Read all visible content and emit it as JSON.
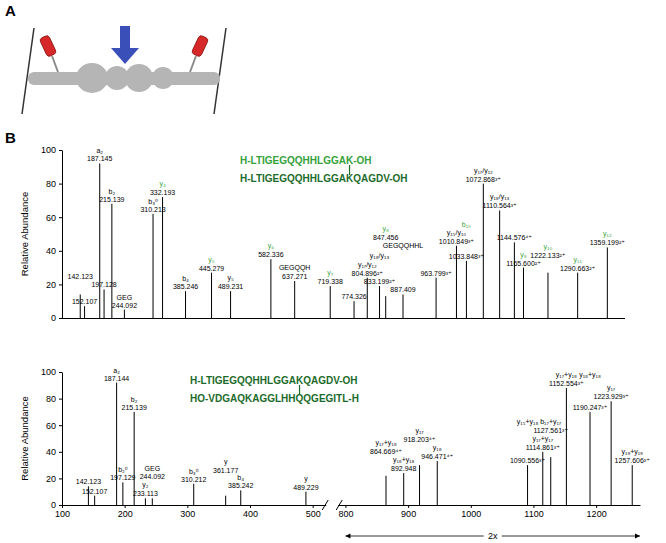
{
  "panel_labels": [
    "A",
    "B"
  ],
  "chart_data": [
    {
      "type": "bar",
      "color": "#000000",
      "y_label": "Relative Abundance",
      "xlim": [
        100,
        1400
      ],
      "ylim": [
        0,
        100
      ],
      "yticks": [
        0,
        20,
        40,
        60,
        80,
        100
      ],
      "tick_labels": "y",
      "x": [
        142.123,
        152.107,
        187.145,
        197.128,
        215.139,
        244.092,
        310.213,
        332.193,
        385.246,
        445.279,
        489.231,
        582.336,
        637.271,
        719.338,
        774.326,
        804.896,
        833.199,
        847.456,
        887.409,
        963.799,
        1010.849,
        1033.848,
        1072.868,
        1110.564,
        1144.576,
        1165.6,
        1222.133,
        1290.663,
        1359.199
      ],
      "values": [
        14,
        7,
        92,
        17,
        68,
        5,
        62,
        72,
        16,
        27,
        16,
        35,
        22,
        19,
        10,
        24,
        19,
        13,
        14,
        24,
        43,
        34,
        80,
        64,
        45,
        30,
        27,
        27,
        42
      ],
      "sequences": [
        {
          "text": "H-LTIGEGQQHHLGGAK-OH",
          "color": "#35a13a"
        },
        {
          "text": "H-LTIGEGQQHHLGGAKQAGDV-OH",
          "color": "#1d6b2a"
        }
      ],
      "annotations": [
        {
          "x": 142.123,
          "text": "142.123",
          "color": "#000000"
        },
        {
          "x": 152.107,
          "text": "152.107",
          "color": "#000000"
        },
        {
          "x": 187.145,
          "text": "187.145",
          "color": "#000000"
        },
        {
          "x": 187.145,
          "text": "a₂",
          "color": "#000000"
        },
        {
          "x": 197.128,
          "text": "197.128",
          "color": "#000000"
        },
        {
          "x": 215.139,
          "text": "215.139",
          "color": "#000000"
        },
        {
          "x": 215.139,
          "text": "b₂",
          "color": "#000000"
        },
        {
          "x": 244.092,
          "text": "244.092",
          "color": "#000000"
        },
        {
          "x": 244.092,
          "text": "GEG",
          "color": "#000000"
        },
        {
          "x": 310.213,
          "text": "310.213",
          "color": "#000000"
        },
        {
          "x": 310.213,
          "text": "b₃⁰",
          "color": "#000000"
        },
        {
          "x": 332.193,
          "text": "332.193",
          "color": "#000000"
        },
        {
          "x": 332.193,
          "text": "y₄",
          "color": "#35a13a"
        },
        {
          "x": 385.246,
          "text": "385.246",
          "color": "#000000"
        },
        {
          "x": 385.246,
          "text": "b₄",
          "color": "#000000"
        },
        {
          "x": 445.279,
          "text": "445.279",
          "color": "#000000"
        },
        {
          "x": 445.279,
          "text": "y₅",
          "color": "#35a13a"
        },
        {
          "x": 489.231,
          "text": "489.231",
          "color": "#000000"
        },
        {
          "x": 489.231,
          "text": "y₅",
          "color": "#000000"
        },
        {
          "x": 582.336,
          "text": "582.336",
          "color": "#000000"
        },
        {
          "x": 582.336,
          "text": "y₆",
          "color": "#35a13a"
        },
        {
          "x": 637.271,
          "text": "637.271",
          "color": "#000000"
        },
        {
          "x": 637.271,
          "text": "GEGQQH",
          "color": "#000000"
        },
        {
          "x": 719.338,
          "text": "719.338",
          "color": "#000000"
        },
        {
          "x": 719.338,
          "text": "y₇",
          "color": "#35a13a"
        },
        {
          "x": 774.326,
          "text": "774.326",
          "color": "#000000"
        },
        {
          "x": 804.896,
          "text": "804.896²⁺",
          "color": "#000000"
        },
        {
          "x": 804.896,
          "text": "y₁₇/y₁₂",
          "color": "#000000"
        },
        {
          "x": 833.199,
          "text": "833.199²⁺",
          "color": "#000000"
        },
        {
          "x": 833.199,
          "text": "y₁₈/y₁₃",
          "color": "#000000"
        },
        {
          "x": 847.456,
          "text": "847.456",
          "color": "#000000"
        },
        {
          "x": 847.456,
          "text": "y₈",
          "color": "#35a13a"
        },
        {
          "x": 887.409,
          "text": "887.409",
          "color": "#000000"
        },
        {
          "x": 887.409,
          "text": "GEGQQHHL",
          "color": "#000000"
        },
        {
          "x": 963.799,
          "text": "963.799³⁺",
          "color": "#000000"
        },
        {
          "x": 1010.849,
          "text": "1010.849³⁺",
          "color": "#000000"
        },
        {
          "x": 1010.849,
          "text": "y₁₅/y₁₀",
          "color": "#000000"
        },
        {
          "x": 1033.848,
          "text": "1033.848³⁺",
          "color": "#000000"
        },
        {
          "x": 1033.848,
          "text": "b₁₀",
          "color": "#35a13a"
        },
        {
          "x": 1072.868,
          "text": "1072.868³⁺",
          "color": "#000000"
        },
        {
          "x": 1072.868,
          "text": "y₁₇/y₁₂",
          "color": "#000000"
        },
        {
          "x": 1110.564,
          "text": "1110.564³⁺",
          "color": "#000000"
        },
        {
          "x": 1110.564,
          "text": "y₁₈/y₁₃",
          "color": "#000000"
        },
        {
          "x": 1144.576,
          "text": "1144.576⁴⁺",
          "color": "#000000"
        },
        {
          "x": 1165.6,
          "text": "1165.600²⁺",
          "color": "#000000"
        },
        {
          "x": 1165.6,
          "text": "y₉",
          "color": "#35a13a"
        },
        {
          "x": 1222.133,
          "text": "1222.133²⁺",
          "color": "#000000"
        },
        {
          "x": 1222.133,
          "text": "y₁₀",
          "color": "#35a13a"
        },
        {
          "x": 1290.663,
          "text": "1290.663²⁺",
          "color": "#000000"
        },
        {
          "x": 1290.663,
          "text": "y₁₁",
          "color": "#35a13a"
        },
        {
          "x": 1359.199,
          "text": "1359.199²⁺",
          "color": "#000000"
        },
        {
          "x": 1359.199,
          "text": "y₁₂",
          "color": "#35a13a"
        }
      ]
    },
    {
      "type": "bar",
      "color": "#000000",
      "y_label": "Relative Abundance",
      "xlim": [
        100,
        1270
      ],
      "x_break": [
        520,
        790
      ],
      "xticks": [
        100,
        200,
        300,
        400,
        500,
        800,
        900,
        1000,
        1100,
        1200
      ],
      "ylim": [
        0,
        100
      ],
      "yticks": [
        0,
        20,
        40,
        60,
        80,
        100
      ],
      "zoom": {
        "label": "2x",
        "range": [
          800,
          1270
        ]
      },
      "x": [
        142.123,
        152.107,
        187.144,
        197.129,
        215.139,
        233.113,
        244.092,
        310.212,
        361.177,
        385.242,
        489.229,
        864.669,
        892.948,
        918.203,
        946.471,
        1090.556,
        1114.861,
        1127.561,
        1152.554,
        1190.247,
        1223.929,
        1257.606
      ],
      "values": [
        14,
        7,
        92,
        17,
        70,
        5,
        5,
        16,
        7,
        11,
        10,
        22,
        24,
        30,
        33,
        30,
        40,
        36,
        88,
        70,
        78,
        30
      ],
      "sequences": [
        {
          "text": "H-LTIGEGQQHHLGGAKQAGDV-OH",
          "color": "#1d6b2a"
        },
        {
          "text": "HO-VDGAQKAGGLHHQQGEGITL-H",
          "color": "#1d6b2a"
        }
      ],
      "annotations": [
        {
          "x": 142.123,
          "text": "142.123",
          "color": "#000000"
        },
        {
          "x": 152.107,
          "text": "152.107",
          "color": "#000000"
        },
        {
          "x": 187.144,
          "text": "187.144",
          "color": "#000000"
        },
        {
          "x": 187.144,
          "text": "a₂",
          "color": "#000000"
        },
        {
          "x": 197.129,
          "text": "197.129",
          "color": "#000000"
        },
        {
          "x": 197.129,
          "text": "b₂⁰",
          "color": "#000000"
        },
        {
          "x": 215.139,
          "text": "215.139",
          "color": "#000000"
        },
        {
          "x": 215.139,
          "text": "b₂",
          "color": "#000000"
        },
        {
          "x": 233.113,
          "text": "233.113",
          "color": "#000000"
        },
        {
          "x": 233.113,
          "text": "y₂",
          "color": "#000000"
        },
        {
          "x": 244.092,
          "text": "244.092",
          "color": "#000000"
        },
        {
          "x": 244.092,
          "text": "GEG",
          "color": "#000000"
        },
        {
          "x": 310.212,
          "text": "310.212",
          "color": "#000000"
        },
        {
          "x": 310.212,
          "text": "b₃⁰",
          "color": "#000000"
        },
        {
          "x": 361.177,
          "text": "361.177",
          "color": "#000000"
        },
        {
          "x": 361.177,
          "text": "y",
          "color": "#000000"
        },
        {
          "x": 385.242,
          "text": "385.242",
          "color": "#000000"
        },
        {
          "x": 385.242,
          "text": "b₄",
          "color": "#000000"
        },
        {
          "x": 489.229,
          "text": "489.229",
          "color": "#000000"
        },
        {
          "x": 489.229,
          "text": "y",
          "color": "#000000"
        },
        {
          "x": 864.669,
          "text": "864.669⁴⁺",
          "color": "#000000"
        },
        {
          "x": 864.669,
          "text": "y₁₇+y₁₈",
          "color": "#000000"
        },
        {
          "x": 892.948,
          "text": "892.948",
          "color": "#000000"
        },
        {
          "x": 892.948,
          "text": "y₁₈+y₁₈",
          "color": "#000000"
        },
        {
          "x": 918.203,
          "text": "918.203⁴⁺",
          "color": "#000000"
        },
        {
          "x": 918.203,
          "text": "y₁₇",
          "color": "#000000"
        },
        {
          "x": 946.471,
          "text": "946.471⁴⁺",
          "color": "#000000"
        },
        {
          "x": 946.471,
          "text": "y₁₈",
          "color": "#000000"
        },
        {
          "x": 1090.556,
          "text": "1090.556³⁺",
          "color": "#000000"
        },
        {
          "x": 1090.556,
          "text": "y₁₅+y₁₈",
          "color": "#000000"
        },
        {
          "x": 1114.861,
          "text": "1114.861³⁺",
          "color": "#000000"
        },
        {
          "x": 1114.861,
          "text": "y₁₇+y₁₇",
          "color": "#000000"
        },
        {
          "x": 1127.561,
          "text": "1127.561³⁺",
          "color": "#000000"
        },
        {
          "x": 1127.561,
          "text": "b₁₇+y₁₇",
          "color": "#000000"
        },
        {
          "x": 1152.554,
          "text": "1152.554³⁺",
          "color": "#000000"
        },
        {
          "x": 1152.554,
          "text": "y₁₇+y₁₈",
          "color": "#000000"
        },
        {
          "x": 1190.247,
          "text": "1190.247³⁺",
          "color": "#000000"
        },
        {
          "x": 1190.247,
          "text": "y₁₈+y₁₈",
          "color": "#000000"
        },
        {
          "x": 1223.929,
          "text": "1223.929³⁺",
          "color": "#000000"
        },
        {
          "x": 1223.929,
          "text": "y₁₇",
          "color": "#000000"
        },
        {
          "x": 1257.606,
          "text": "1257.606³⁺",
          "color": "#000000"
        },
        {
          "x": 1257.606,
          "text": "y₁₉+y₁₉",
          "color": "#000000"
        }
      ]
    }
  ]
}
